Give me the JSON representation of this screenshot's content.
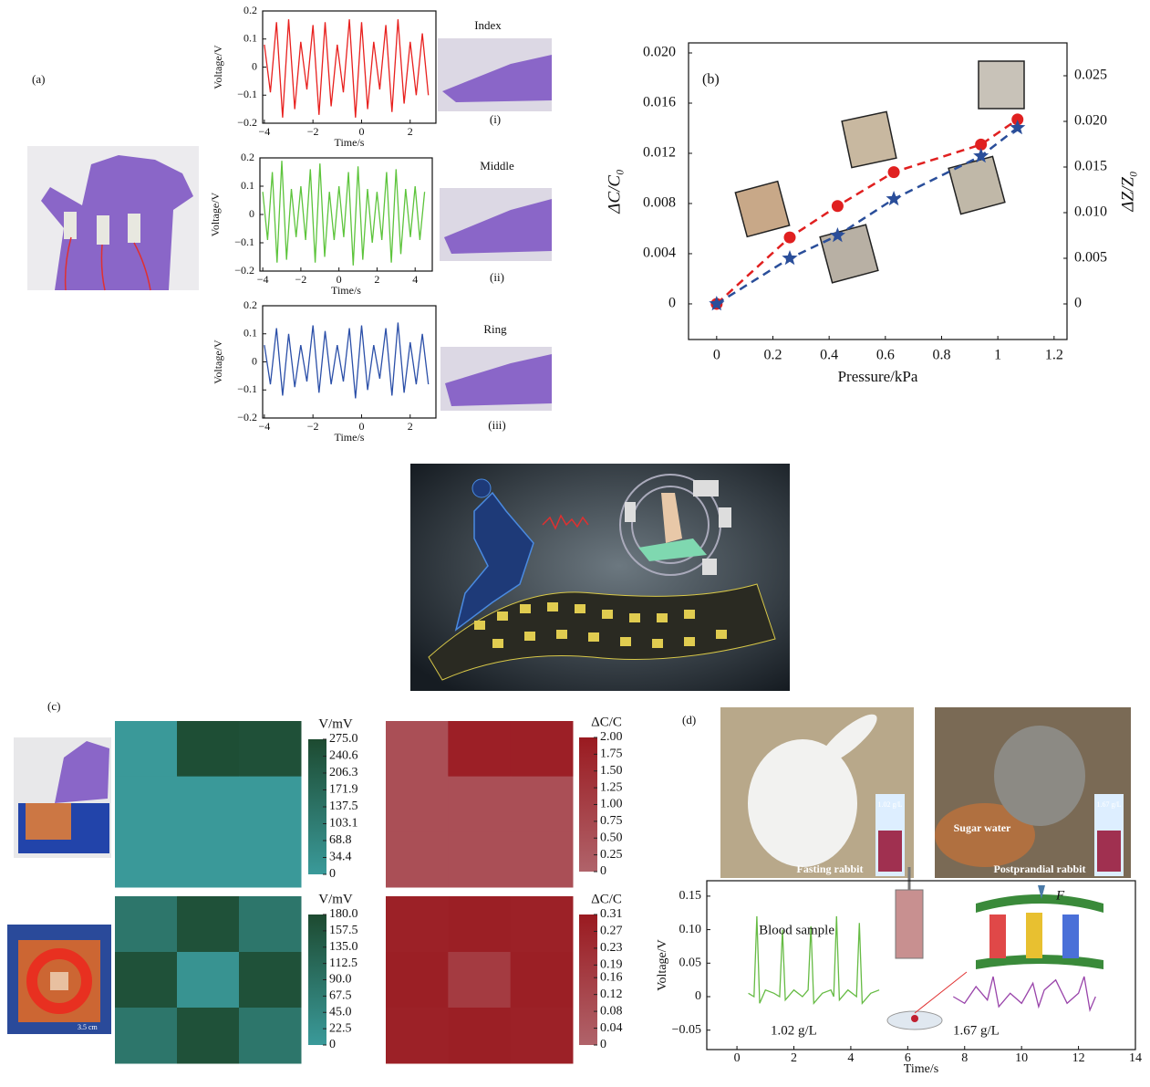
{
  "labels": {
    "a": "(a)",
    "b": "(b)",
    "c": "(c)",
    "d": "(d)"
  },
  "photo_texts": {
    "index": "Index",
    "middle": "Middle",
    "ring": "Ring",
    "i": "(i)",
    "ii": "(ii)",
    "iii": "(iii)",
    "fasting": "Fasting rabbit",
    "postprandial": "Postprandial rabbit",
    "sugar": "Sugar water",
    "vial1": "1.02 g/L",
    "vial2": "1.67 g/L",
    "scale": "3.5 cm"
  },
  "chart_data": [
    {
      "type": "line",
      "xlabel": "Time/s",
      "ylabel": "Voltage/V",
      "xlim": [
        -4.07,
        3.06
      ],
      "ylim": [
        -0.2,
        0.2
      ],
      "xticks": [
        {
          "value": -4,
          "label": "−4"
        },
        {
          "value": -2,
          "label": "−2"
        },
        0,
        2
      ],
      "yticks": [
        {
          "value": -0.2,
          "label": "−0.2"
        },
        {
          "value": -0.1,
          "label": "−0.1"
        },
        0,
        0.1,
        0.2
      ],
      "series": [
        {
          "color": "#e8201e",
          "x": [
            -4,
            -3.75,
            -3.5,
            -3.25,
            -3,
            -2.75,
            -2.5,
            -2.25,
            -2,
            -1.75,
            -1.5,
            -1.25,
            -1,
            -0.75,
            -0.5,
            -0.25,
            0,
            0.25,
            0.5,
            0.75,
            1,
            1.25,
            1.5,
            1.75,
            2,
            2.25,
            2.5,
            2.75
          ],
          "values": [
            0.08,
            -0.09,
            0.16,
            -0.18,
            0.17,
            -0.15,
            0.09,
            -0.08,
            0.15,
            -0.17,
            0.16,
            -0.14,
            0.08,
            -0.09,
            0.17,
            -0.18,
            0.16,
            -0.15,
            0.09,
            -0.08,
            0.15,
            -0.16,
            0.17,
            -0.13,
            0.09,
            -0.1,
            0.12,
            -0.1
          ]
        }
      ]
    },
    {
      "type": "line",
      "xlabel": "Time/s",
      "ylabel": "Voltage/V",
      "xlim": [
        -4.15,
        4.9
      ],
      "ylim": [
        -0.2,
        0.2
      ],
      "xticks": [
        {
          "value": -4,
          "label": "−4"
        },
        {
          "value": -2,
          "label": "−2"
        },
        0,
        2,
        4
      ],
      "yticks": [
        {
          "value": -0.2,
          "label": "−0.2"
        },
        {
          "value": -0.1,
          "label": "−0.1"
        },
        0,
        0.1,
        0.2
      ],
      "series": [
        {
          "color": "#5dc43c",
          "x": [
            -4,
            -3.75,
            -3.5,
            -3.25,
            -3,
            -2.75,
            -2.5,
            -2.25,
            -2,
            -1.75,
            -1.5,
            -1.25,
            -1,
            -0.75,
            -0.5,
            -0.25,
            0,
            0.25,
            0.5,
            0.75,
            1,
            1.25,
            1.5,
            1.75,
            2,
            2.25,
            2.5,
            2.75,
            3,
            3.25,
            3.5,
            3.75,
            4,
            4.25,
            4.5
          ],
          "values": [
            0.08,
            -0.09,
            0.15,
            -0.17,
            0.19,
            -0.16,
            0.09,
            -0.08,
            0.1,
            -0.09,
            0.16,
            -0.17,
            0.18,
            -0.15,
            0.08,
            -0.09,
            0.1,
            -0.08,
            0.15,
            -0.18,
            0.17,
            -0.16,
            0.09,
            -0.1,
            0.08,
            -0.09,
            0.15,
            -0.17,
            0.16,
            -0.14,
            0.09,
            -0.08,
            0.1,
            -0.09,
            0.08
          ]
        }
      ]
    },
    {
      "type": "line",
      "xlabel": "Time/s",
      "ylabel": "Voltage/V",
      "xlim": [
        -4.07,
        3.06
      ],
      "ylim": [
        -0.2,
        0.2
      ],
      "xticks": [
        {
          "value": -4,
          "label": "−4"
        },
        {
          "value": -2,
          "label": "−2"
        },
        0,
        2
      ],
      "yticks": [
        {
          "value": -0.2,
          "label": "−0.2"
        },
        {
          "value": -0.1,
          "label": "−0.1"
        },
        0,
        0.1,
        0.2
      ],
      "series": [
        {
          "color": "#2b4fa8",
          "x": [
            -4,
            -3.75,
            -3.5,
            -3.25,
            -3,
            -2.75,
            -2.5,
            -2.25,
            -2,
            -1.75,
            -1.5,
            -1.25,
            -1,
            -0.75,
            -0.5,
            -0.25,
            0,
            0.25,
            0.5,
            0.75,
            1,
            1.25,
            1.5,
            1.75,
            2,
            2.25,
            2.5,
            2.75
          ],
          "values": [
            0.06,
            -0.08,
            0.12,
            -0.12,
            0.1,
            -0.09,
            0.06,
            -0.07,
            0.13,
            -0.11,
            0.11,
            -0.08,
            0.06,
            -0.07,
            0.12,
            -0.13,
            0.13,
            -0.1,
            0.06,
            -0.06,
            0.12,
            -0.12,
            0.14,
            -0.11,
            0.07,
            -0.08,
            0.1,
            -0.08
          ]
        }
      ]
    },
    {
      "type": "line",
      "xlabel": "Pressure/kPa",
      "ylabel": "ΔC/C₀",
      "y2label": "ΔZ/Z₀",
      "xlim": [
        -0.1,
        1.246
      ],
      "ylim": [
        -0.00284,
        0.0208
      ],
      "y2lim": [
        -0.0039,
        0.0286
      ],
      "xticks": [
        0,
        0.2,
        0.4,
        0.6,
        0.8,
        1,
        1.2
      ],
      "yticks": [
        0,
        0.004,
        0.008,
        0.012,
        0.016,
        {
          "value": 0.02,
          "label": "0.020"
        }
      ],
      "y2ticks": [
        0,
        0.005,
        {
          "value": 0.01,
          "label": "0.010"
        },
        0.015,
        {
          "value": 0.02,
          "label": "0.020"
        },
        0.025
      ],
      "series": [
        {
          "color": "#e02020",
          "marker": "circle",
          "x": [
            0,
            0.26,
            0.43,
            0.63,
            0.94,
            1.07
          ],
          "values": [
            0,
            0.0053,
            0.0078,
            0.0105,
            0.0127,
            0.0147
          ]
        },
        {
          "color": "#2a4e9a",
          "marker": "star",
          "axis": "y2",
          "x": [
            0,
            0.26,
            0.43,
            0.63,
            0.94,
            1.07
          ],
          "values": [
            0,
            0.005,
            0.0075,
            0.0115,
            0.0162,
            0.0193
          ]
        }
      ]
    },
    {
      "type": "heatmap",
      "colorbar_label": "V/mV",
      "clim": [
        0,
        275
      ],
      "colors": [
        "#3a9a9a",
        "#1d4a30"
      ],
      "z": [
        [
          3,
          262,
          255
        ],
        [
          3,
          3,
          3
        ],
        [
          3,
          3,
          3
        ]
      ],
      "cticks": [
        0,
        34.4,
        68.8,
        103.1,
        137.5,
        171.9,
        206.3,
        240.6,
        {
          "value": 275,
          "label": "275.0"
        }
      ]
    },
    {
      "type": "heatmap",
      "colorbar_label": "ΔC/C",
      "clim": [
        0,
        2
      ],
      "colors": [
        "#b0636a",
        "#9a1a20"
      ],
      "z": [
        [
          0.55,
          1.85,
          1.85
        ],
        [
          0.55,
          0.55,
          0.55
        ],
        [
          0.55,
          0.55,
          0.55
        ]
      ],
      "cticks": [
        0,
        0.25,
        {
          "value": 0.5,
          "label": "0.50"
        },
        0.75,
        {
          "value": 1,
          "label": "1.00"
        },
        1.25,
        {
          "value": 1.5,
          "label": "1.50"
        },
        1.75,
        {
          "value": 2,
          "label": "2.00"
        }
      ]
    },
    {
      "type": "heatmap",
      "colorbar_label": "V/mV",
      "clim": [
        0,
        180
      ],
      "colors": [
        "#3a9a9a",
        "#1d4a30"
      ],
      "z": [
        [
          80,
          165,
          80
        ],
        [
          165,
          15,
          165
        ],
        [
          80,
          165,
          80
        ]
      ],
      "cticks": [
        0,
        22.5,
        {
          "value": 45,
          "label": "45.0"
        },
        67.5,
        {
          "value": 90,
          "label": "90.0"
        },
        112.5,
        {
          "value": 135,
          "label": "135.0"
        },
        157.5,
        {
          "value": 180,
          "label": "180.0"
        }
      ]
    },
    {
      "type": "heatmap",
      "colorbar_label": "ΔC/C",
      "clim": [
        0,
        0.31
      ],
      "colors": [
        "#b0636a",
        "#9a1a20"
      ],
      "z": [
        [
          0.28,
          0.29,
          0.28
        ],
        [
          0.29,
          0.17,
          0.29
        ],
        [
          0.28,
          0.29,
          0.28
        ]
      ],
      "cticks": [
        0,
        0.04,
        0.08,
        0.12,
        0.16,
        0.19,
        0.23,
        0.27,
        0.31
      ]
    },
    {
      "type": "line",
      "xlabel": "Time/s",
      "ylabel": "Voltage/V",
      "xlim": [
        -1.06,
        14
      ],
      "ylim": [
        -0.079,
        0.173
      ],
      "xticks": [
        0,
        2,
        4,
        6,
        8,
        10,
        12,
        14
      ],
      "yticks": [
        {
          "value": -0.05,
          "label": "−0.05"
        },
        0,
        0.05,
        {
          "value": 0.1,
          "label": "0.10"
        },
        0.15
      ],
      "annotations": [
        "Blood sample",
        "F",
        "1.02 g/L",
        "1.67 g/L"
      ],
      "series": [
        {
          "color": "#66bb44",
          "x": [
            0.4,
            0.6,
            0.7,
            0.8,
            1.0,
            1.3,
            1.5,
            1.6,
            1.7,
            2.0,
            2.3,
            2.5,
            2.6,
            2.7,
            3.0,
            3.3,
            3.4,
            3.5,
            3.6,
            3.9,
            4.2,
            4.3,
            4.4,
            4.7,
            5.0
          ],
          "values": [
            0.005,
            0,
            0.12,
            -0.01,
            0.01,
            0.005,
            0,
            0.1,
            -0.005,
            0.01,
            0,
            0.01,
            0.105,
            -0.01,
            0.005,
            0.01,
            0,
            0.12,
            -0.005,
            0.01,
            0,
            0.11,
            -0.01,
            0.005,
            0.01
          ]
        },
        {
          "color": "#9944aa",
          "x": [
            7.6,
            8.0,
            8.4,
            8.8,
            9.0,
            9.2,
            9.6,
            10.0,
            10.4,
            10.6,
            10.8,
            11.2,
            11.6,
            12.0,
            12.2,
            12.4,
            12.6
          ],
          "values": [
            0,
            -0.01,
            0.015,
            -0.005,
            0.03,
            -0.015,
            0.005,
            -0.01,
            0.02,
            -0.015,
            0.01,
            0.025,
            -0.01,
            0.005,
            0.03,
            -0.02,
            0
          ]
        }
      ]
    }
  ]
}
